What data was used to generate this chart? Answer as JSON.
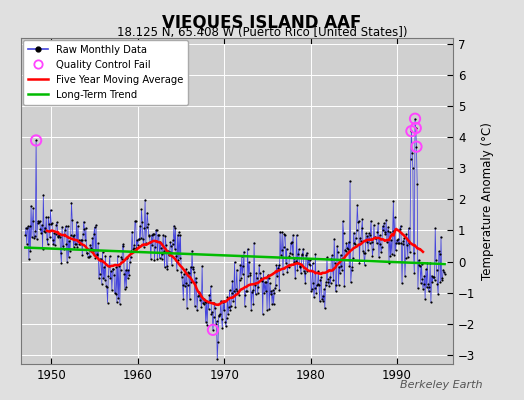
{
  "title": "VIEQUES ISLAND AAF",
  "subtitle": "18.125 N, 65.408 W (Puerto Rico [United States])",
  "ylabel": "Temperature Anomaly (°C)",
  "watermark": "Berkeley Earth",
  "xlim": [
    1946.5,
    1996.5
  ],
  "ylim": [
    -3.3,
    7.2
  ],
  "yticks": [
    -3,
    -2,
    -1,
    0,
    1,
    2,
    3,
    4,
    5,
    6,
    7
  ],
  "xticks": [
    1950,
    1960,
    1970,
    1980,
    1990
  ],
  "fig_bg_color": "#e0e0e0",
  "plot_bg_color": "#d0d0d0",
  "grid_color": "#ffffff",
  "raw_line_color": "#4444dd",
  "raw_dot_color": "#000000",
  "moving_avg_color": "#ff0000",
  "trend_color": "#00bb00",
  "qc_fail_color": "#ff44ff"
}
